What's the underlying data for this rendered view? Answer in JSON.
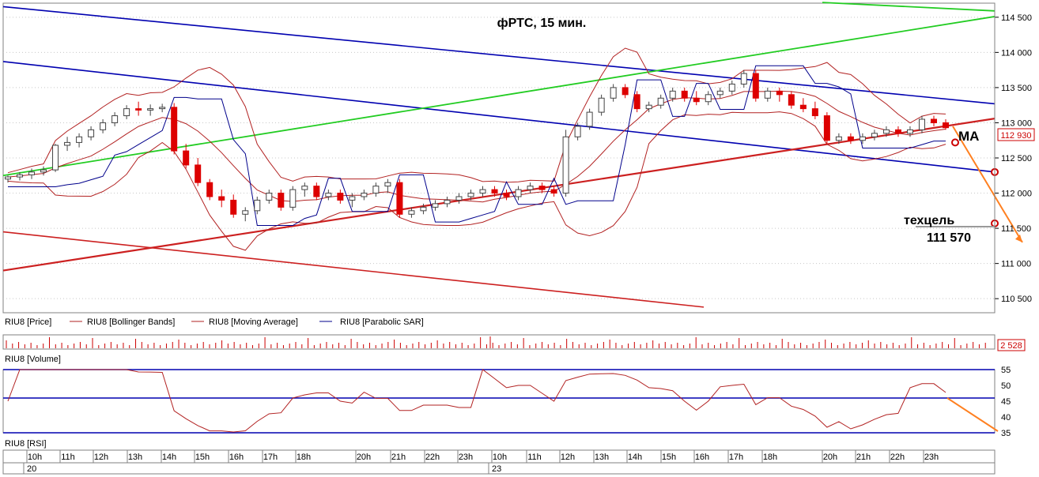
{
  "title": "фРТС, 15 мин.",
  "annotations": {
    "ma_label": "MA",
    "target_label": "техцель",
    "target_value": "111 570"
  },
  "price_panel": {
    "last_price_badge": "112 930",
    "y_ticks": [
      "114 500",
      "114 000",
      "113 500",
      "113 000",
      "112 500",
      "112 000",
      "111 500",
      "111 000",
      "110 500"
    ],
    "legend": [
      {
        "label": "RIU8 [Price]",
        "color": "#000000"
      },
      {
        "label": "RIU8 [Bollinger Bands]",
        "color": "#b22222"
      },
      {
        "label": "RIU8 [Moving Average]",
        "color": "#b22222"
      },
      {
        "label": "RIU8 [Parabolic SAR]",
        "color": "#00008b"
      }
    ]
  },
  "volume_panel": {
    "label": "RIU8 [Volume]",
    "last_value_badge": "2 528"
  },
  "rsi_panel": {
    "label": "RIU8 [RSI]",
    "y_ticks": [
      "55",
      "50",
      "45",
      "40",
      "35"
    ]
  },
  "time_axis": {
    "hours": [
      "10h",
      "11h",
      "12h",
      "13h",
      "14h",
      "15h",
      "16h",
      "17h",
      "18h",
      "20h",
      "21h",
      "22h",
      "23h",
      "10h",
      "11h",
      "12h",
      "13h",
      "14h",
      "15h",
      "16h",
      "17h",
      "18h",
      "20h",
      "21h",
      "22h",
      "23h"
    ],
    "days": [
      "20",
      "23"
    ]
  },
  "colors": {
    "bull_candle": "#ffffff",
    "bear_candle": "#dd0000",
    "bollinger": "#b22222",
    "sar": "#00008b",
    "blue_channel": "#0000b0",
    "green_channel": "#22cc22",
    "red_channel": "#cc2020",
    "orange_arrow": "#ff8020",
    "rsi_line": "#b22222"
  },
  "chart_data": {
    "type": "candlestick",
    "title": "фРТС, 15 мин.",
    "ylim": [
      110300,
      114700
    ],
    "series": [
      {
        "name": "RIU8 [Price]",
        "ohlc": [
          [
            112200,
            112250,
            112150,
            112230
          ],
          [
            112230,
            112300,
            112180,
            112260
          ],
          [
            112260,
            112350,
            112200,
            112300
          ],
          [
            112300,
            112380,
            112250,
            112330
          ],
          [
            112330,
            112700,
            112300,
            112680
          ],
          [
            112680,
            112800,
            112600,
            112720
          ],
          [
            112720,
            112850,
            112650,
            112800
          ],
          [
            112800,
            112950,
            112750,
            112900
          ],
          [
            112900,
            113050,
            112850,
            113000
          ],
          [
            113000,
            113150,
            112950,
            113100
          ],
          [
            113100,
            113250,
            113050,
            113200
          ],
          [
            113200,
            113300,
            113100,
            113180
          ],
          [
            113180,
            113260,
            113100,
            113200
          ],
          [
            113200,
            113270,
            113150,
            113220
          ],
          [
            113220,
            113280,
            112550,
            112600
          ],
          [
            112600,
            112700,
            112350,
            112400
          ],
          [
            112400,
            112500,
            112100,
            112150
          ],
          [
            112150,
            112200,
            111900,
            111950
          ],
          [
            111950,
            112050,
            111800,
            111900
          ],
          [
            111900,
            111980,
            111650,
            111700
          ],
          [
            111700,
            111800,
            111600,
            111750
          ],
          [
            111750,
            111950,
            111700,
            111900
          ],
          [
            111900,
            112050,
            111850,
            112000
          ],
          [
            112000,
            112050,
            111750,
            111800
          ],
          [
            111800,
            112100,
            111750,
            112050
          ],
          [
            112050,
            112150,
            111950,
            112100
          ],
          [
            112100,
            112150,
            111900,
            111950
          ],
          [
            111950,
            112050,
            111900,
            112000
          ],
          [
            112000,
            112050,
            111850,
            111900
          ],
          [
            111900,
            112000,
            111800,
            111950
          ],
          [
            111950,
            112050,
            111900,
            112000
          ],
          [
            112000,
            112150,
            111950,
            112100
          ],
          [
            112100,
            112200,
            112000,
            112150
          ],
          [
            112150,
            112200,
            111650,
            111700
          ],
          [
            111700,
            111800,
            111650,
            111750
          ],
          [
            111750,
            111850,
            111700,
            111800
          ],
          [
            111800,
            111900,
            111750,
            111850
          ],
          [
            111850,
            111950,
            111800,
            111900
          ],
          [
            111900,
            112000,
            111850,
            111950
          ],
          [
            111950,
            112050,
            111900,
            112000
          ],
          [
            112000,
            112100,
            111950,
            112050
          ],
          [
            112050,
            112100,
            111950,
            112000
          ],
          [
            112000,
            112050,
            111900,
            111950
          ],
          [
            111950,
            112100,
            111900,
            112050
          ],
          [
            112050,
            112150,
            112000,
            112100
          ],
          [
            112100,
            112150,
            112000,
            112050
          ],
          [
            112050,
            112100,
            111950,
            112000
          ],
          [
            112000,
            112900,
            111950,
            112800
          ],
          [
            112800,
            113000,
            112750,
            112950
          ],
          [
            112950,
            113200,
            112900,
            113150
          ],
          [
            113150,
            113400,
            113100,
            113350
          ],
          [
            113350,
            113550,
            113300,
            113500
          ],
          [
            113500,
            113550,
            113350,
            113400
          ],
          [
            113400,
            113450,
            113150,
            113200
          ],
          [
            113200,
            113300,
            113150,
            113250
          ],
          [
            113250,
            113400,
            113200,
            113350
          ],
          [
            113350,
            113500,
            113300,
            113450
          ],
          [
            113450,
            113500,
            113300,
            113350
          ],
          [
            113350,
            113450,
            113250,
            113300
          ],
          [
            113300,
            113450,
            113250,
            113400
          ],
          [
            113400,
            113500,
            113350,
            113450
          ],
          [
            113450,
            113600,
            113400,
            113550
          ],
          [
            113550,
            113750,
            113500,
            113700
          ],
          [
            113700,
            113750,
            113300,
            113350
          ],
          [
            113350,
            113500,
            113300,
            113450
          ],
          [
            113450,
            113500,
            113300,
            113400
          ],
          [
            113400,
            113450,
            113200,
            113250
          ],
          [
            113250,
            113350,
            113150,
            113200
          ],
          [
            113200,
            113300,
            113050,
            113100
          ],
          [
            113100,
            113150,
            112700,
            112750
          ],
          [
            112750,
            112850,
            112700,
            112800
          ],
          [
            112800,
            112850,
            112700,
            112750
          ],
          [
            112750,
            112850,
            112700,
            112800
          ],
          [
            112800,
            112900,
            112750,
            112850
          ],
          [
            112850,
            112950,
            112800,
            112900
          ],
          [
            112900,
            112950,
            112800,
            112850
          ],
          [
            112850,
            112950,
            112800,
            112900
          ],
          [
            112900,
            113100,
            112850,
            113050
          ],
          [
            113050,
            113100,
            112950,
            113000
          ],
          [
            113000,
            113050,
            112900,
            112930
          ]
        ]
      },
      {
        "name": "RIU8 [Volume]",
        "last": 2528
      },
      {
        "name": "RIU8 [RSI]",
        "ylim": [
          35,
          55
        ]
      }
    ],
    "xlabel": "",
    "ylabel": ""
  }
}
